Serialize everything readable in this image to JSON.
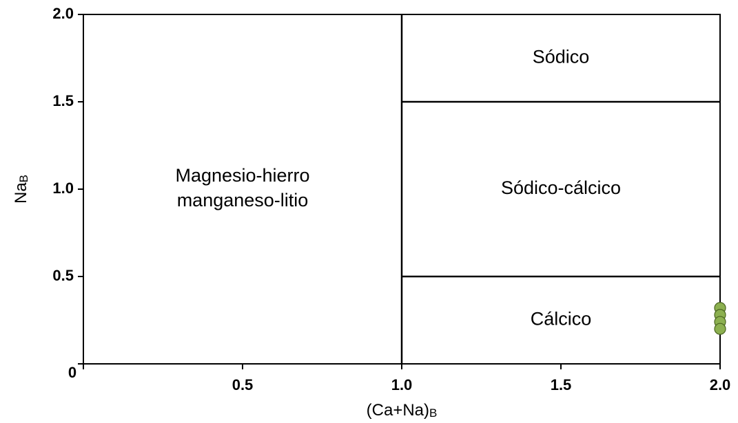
{
  "chart_data": {
    "type": "scatter",
    "x_label": "(Ca+Na)",
    "x_label_subscript": "B",
    "y_label": "Na",
    "y_label_subscript": "B",
    "xlim": [
      0,
      2
    ],
    "ylim": [
      0,
      2
    ],
    "xticks": [
      0,
      {
        "value": 0.5,
        "label": "0.5"
      },
      {
        "value": 1,
        "label": "1.0"
      },
      {
        "value": 1.5,
        "label": "1.5"
      },
      {
        "value": 2,
        "label": "2.0"
      }
    ],
    "yticks": [
      {
        "value": 0.5,
        "label": "0.5"
      },
      {
        "value": 1,
        "label": "1.0"
      },
      {
        "value": 1.5,
        "label": "1.5"
      },
      {
        "value": 2,
        "label": "2.0"
      }
    ],
    "boundaries": [
      {
        "x": [
          1,
          1
        ],
        "y": [
          0,
          2
        ]
      },
      {
        "x": [
          1,
          2
        ],
        "y": [
          1.5,
          1.5
        ]
      },
      {
        "x": [
          1,
          2
        ],
        "y": [
          0.5,
          0.5
        ]
      }
    ],
    "regions": [
      {
        "lines": [
          "Magnesio-hierro",
          "manganeso-litio"
        ]
      },
      {
        "lines": [
          "Sódico"
        ]
      },
      {
        "lines": [
          "Sódico-cálcico"
        ]
      },
      {
        "lines": [
          "Cálcico"
        ]
      }
    ],
    "series": [
      {
        "color": "#8cb050",
        "x": [
          2,
          2,
          2,
          2
        ],
        "values": [
          0.32,
          0.28,
          0.24,
          0.2
        ]
      }
    ]
  }
}
